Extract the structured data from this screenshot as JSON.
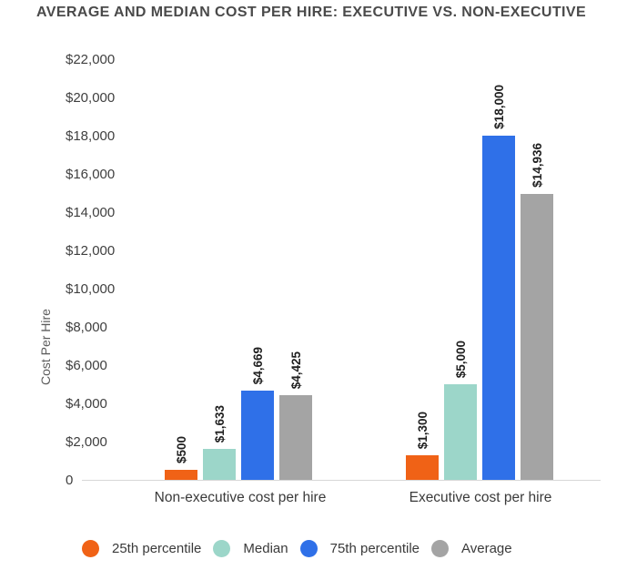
{
  "title": "AVERAGE AND MEDIAN COST PER HIRE: EXECUTIVE VS. NON-EXECUTIVE",
  "chart_data": {
    "type": "bar",
    "title": "AVERAGE AND MEDIAN COST PER HIRE: EXECUTIVE VS. NON-EXECUTIVE",
    "xlabel": "",
    "ylabel": "Cost Per Hire",
    "ylim": [
      0,
      22000
    ],
    "y_tick_interval": 2000,
    "y_tick_labels": [
      "$22,000",
      "$20,000",
      "$18,000",
      "$16,000",
      "$14,000",
      "$12,000",
      "$10,000",
      "$8,000",
      "$6,000",
      "$4,000",
      "$2,000",
      "0"
    ],
    "grid": false,
    "legend_position": "bottom",
    "categories": [
      "Non-executive cost per hire",
      "Executive cost per hire"
    ],
    "series": [
      {
        "name": "25th percentile",
        "color": "#F06216",
        "values": [
          500,
          1300
        ],
        "value_labels": [
          "$500",
          "$1,300"
        ]
      },
      {
        "name": "Median",
        "color": "#9CD6C9",
        "values": [
          1633,
          5000
        ],
        "value_labels": [
          "$1,633",
          "$5,000"
        ]
      },
      {
        "name": "75th percentile",
        "color": "#2F70E8",
        "values": [
          4669,
          18000
        ],
        "value_labels": [
          "$4,669",
          "$18,000"
        ]
      },
      {
        "name": "Average",
        "color": "#A4A4A4",
        "values": [
          4425,
          14936
        ],
        "value_labels": [
          "$4,425",
          "$14,936"
        ]
      }
    ]
  },
  "colors": {
    "background": "#FFFFFF",
    "title_text": "#4A4A4A",
    "tick_text": "#3F3F3F",
    "bar_label_text": "#1F1F1F",
    "category_text": "#3A3A3A",
    "legend_text": "#3A3A3A",
    "axis_line": "#D8D8D8"
  }
}
